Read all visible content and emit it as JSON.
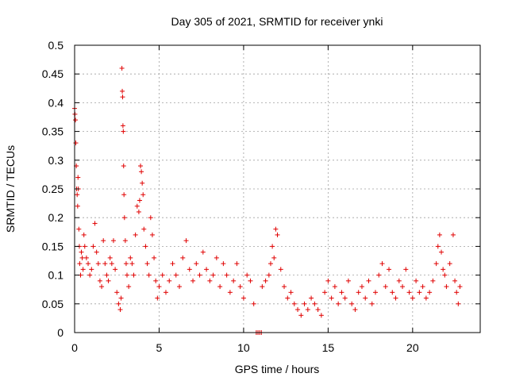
{
  "chart_data": {
    "type": "scatter",
    "title": "Day 305 of 2021, SRMTID for receiver ynki",
    "xlabel": "GPS time / hours",
    "ylabel": "SRMTID / TECUs",
    "xlim": [
      0,
      24
    ],
    "ylim": [
      0,
      0.5
    ],
    "grid": true,
    "marker": "+",
    "series_color": "#e00000",
    "x_ticks": [
      {
        "value": 0,
        "label": "0"
      },
      {
        "value": 5,
        "label": "5"
      },
      {
        "value": 10,
        "label": "10"
      },
      {
        "value": 15,
        "label": "15"
      },
      {
        "value": 20,
        "label": "20"
      }
    ],
    "y_ticks": [
      {
        "value": 0,
        "label": "0"
      },
      {
        "value": 0.05,
        "label": "0.05"
      },
      {
        "value": 0.1,
        "label": "0.1"
      },
      {
        "value": 0.15,
        "label": "0.15"
      },
      {
        "value": 0.2,
        "label": "0.2"
      },
      {
        "value": 0.25,
        "label": "0.25"
      },
      {
        "value": 0.3,
        "label": "0.3"
      },
      {
        "value": 0.35,
        "label": "0.35"
      },
      {
        "value": 0.4,
        "label": "0.4"
      },
      {
        "value": 0.45,
        "label": "0.45"
      },
      {
        "value": 0.5,
        "label": "0.5"
      }
    ],
    "series": [
      {
        "name": "SRMTID",
        "points": [
          [
            0.0,
            0.39
          ],
          [
            0.02,
            0.38
          ],
          [
            0.05,
            0.37
          ],
          [
            0.07,
            0.33
          ],
          [
            0.1,
            0.29
          ],
          [
            0.12,
            0.25
          ],
          [
            0.15,
            0.24
          ],
          [
            0.18,
            0.22
          ],
          [
            0.2,
            0.27
          ],
          [
            0.22,
            0.25
          ],
          [
            0.25,
            0.18
          ],
          [
            0.28,
            0.15
          ],
          [
            0.3,
            0.12
          ],
          [
            0.35,
            0.1
          ],
          [
            0.4,
            0.14
          ],
          [
            0.45,
            0.13
          ],
          [
            0.5,
            0.11
          ],
          [
            0.55,
            0.17
          ],
          [
            0.6,
            0.15
          ],
          [
            0.7,
            0.13
          ],
          [
            0.8,
            0.12
          ],
          [
            0.9,
            0.1
          ],
          [
            1.0,
            0.11
          ],
          [
            1.1,
            0.15
          ],
          [
            1.2,
            0.19
          ],
          [
            1.3,
            0.14
          ],
          [
            1.4,
            0.12
          ],
          [
            1.5,
            0.09
          ],
          [
            1.6,
            0.08
          ],
          [
            1.7,
            0.16
          ],
          [
            1.8,
            0.12
          ],
          [
            1.9,
            0.1
          ],
          [
            2.0,
            0.09
          ],
          [
            2.1,
            0.13
          ],
          [
            2.2,
            0.12
          ],
          [
            2.3,
            0.16
          ],
          [
            2.4,
            0.11
          ],
          [
            2.5,
            0.07
          ],
          [
            2.6,
            0.05
          ],
          [
            2.7,
            0.04
          ],
          [
            2.75,
            0.06
          ],
          [
            2.8,
            0.46
          ],
          [
            2.82,
            0.42
          ],
          [
            2.84,
            0.41
          ],
          [
            2.86,
            0.36
          ],
          [
            2.88,
            0.35
          ],
          [
            2.9,
            0.29
          ],
          [
            2.92,
            0.24
          ],
          [
            2.95,
            0.2
          ],
          [
            3.0,
            0.16
          ],
          [
            3.05,
            0.12
          ],
          [
            3.1,
            0.1
          ],
          [
            3.2,
            0.08
          ],
          [
            3.3,
            0.13
          ],
          [
            3.4,
            0.12
          ],
          [
            3.5,
            0.1
          ],
          [
            3.6,
            0.17
          ],
          [
            3.7,
            0.22
          ],
          [
            3.8,
            0.21
          ],
          [
            3.85,
            0.23
          ],
          [
            3.9,
            0.29
          ],
          [
            3.95,
            0.28
          ],
          [
            4.0,
            0.26
          ],
          [
            4.05,
            0.24
          ],
          [
            4.1,
            0.18
          ],
          [
            4.2,
            0.15
          ],
          [
            4.3,
            0.12
          ],
          [
            4.4,
            0.1
          ],
          [
            4.5,
            0.2
          ],
          [
            4.6,
            0.17
          ],
          [
            4.7,
            0.13
          ],
          [
            4.8,
            0.09
          ],
          [
            4.9,
            0.06
          ],
          [
            5.0,
            0.08
          ],
          [
            5.2,
            0.1
          ],
          [
            5.4,
            0.07
          ],
          [
            5.6,
            0.09
          ],
          [
            5.8,
            0.12
          ],
          [
            6.0,
            0.1
          ],
          [
            6.2,
            0.08
          ],
          [
            6.4,
            0.13
          ],
          [
            6.6,
            0.16
          ],
          [
            6.8,
            0.11
          ],
          [
            7.0,
            0.09
          ],
          [
            7.2,
            0.12
          ],
          [
            7.4,
            0.1
          ],
          [
            7.6,
            0.14
          ],
          [
            7.8,
            0.11
          ],
          [
            8.0,
            0.09
          ],
          [
            8.2,
            0.1
          ],
          [
            8.4,
            0.13
          ],
          [
            8.6,
            0.08
          ],
          [
            8.8,
            0.12
          ],
          [
            9.0,
            0.1
          ],
          [
            9.2,
            0.07
          ],
          [
            9.4,
            0.09
          ],
          [
            9.6,
            0.12
          ],
          [
            9.8,
            0.08
          ],
          [
            10.0,
            0.06
          ],
          [
            10.2,
            0.1
          ],
          [
            10.4,
            0.09
          ],
          [
            10.6,
            0.05
          ],
          [
            10.75,
            0.0
          ],
          [
            10.85,
            0.0
          ],
          [
            10.95,
            0.0
          ],
          [
            11.05,
            0.0
          ],
          [
            11.1,
            0.08
          ],
          [
            11.3,
            0.09
          ],
          [
            11.5,
            0.1
          ],
          [
            11.6,
            0.12
          ],
          [
            11.7,
            0.15
          ],
          [
            11.8,
            0.13
          ],
          [
            11.9,
            0.18
          ],
          [
            12.0,
            0.17
          ],
          [
            12.2,
            0.11
          ],
          [
            12.4,
            0.08
          ],
          [
            12.6,
            0.06
          ],
          [
            12.8,
            0.07
          ],
          [
            13.0,
            0.05
          ],
          [
            13.2,
            0.04
          ],
          [
            13.4,
            0.03
          ],
          [
            13.6,
            0.05
          ],
          [
            13.8,
            0.04
          ],
          [
            14.0,
            0.06
          ],
          [
            14.2,
            0.05
          ],
          [
            14.4,
            0.04
          ],
          [
            14.6,
            0.03
          ],
          [
            14.8,
            0.07
          ],
          [
            15.0,
            0.09
          ],
          [
            15.2,
            0.06
          ],
          [
            15.4,
            0.08
          ],
          [
            15.6,
            0.05
          ],
          [
            15.8,
            0.07
          ],
          [
            16.0,
            0.06
          ],
          [
            16.2,
            0.09
          ],
          [
            16.4,
            0.05
          ],
          [
            16.6,
            0.04
          ],
          [
            16.8,
            0.07
          ],
          [
            17.0,
            0.08
          ],
          [
            17.2,
            0.06
          ],
          [
            17.4,
            0.09
          ],
          [
            17.6,
            0.05
          ],
          [
            17.8,
            0.07
          ],
          [
            18.0,
            0.1
          ],
          [
            18.2,
            0.12
          ],
          [
            18.4,
            0.08
          ],
          [
            18.6,
            0.11
          ],
          [
            18.8,
            0.07
          ],
          [
            19.0,
            0.06
          ],
          [
            19.2,
            0.09
          ],
          [
            19.4,
            0.08
          ],
          [
            19.6,
            0.11
          ],
          [
            19.8,
            0.07
          ],
          [
            20.0,
            0.06
          ],
          [
            20.2,
            0.09
          ],
          [
            20.4,
            0.07
          ],
          [
            20.6,
            0.08
          ],
          [
            20.8,
            0.06
          ],
          [
            21.0,
            0.07
          ],
          [
            21.2,
            0.09
          ],
          [
            21.4,
            0.12
          ],
          [
            21.5,
            0.15
          ],
          [
            21.6,
            0.17
          ],
          [
            21.7,
            0.14
          ],
          [
            21.8,
            0.11
          ],
          [
            21.9,
            0.1
          ],
          [
            22.0,
            0.08
          ],
          [
            22.2,
            0.12
          ],
          [
            22.4,
            0.17
          ],
          [
            22.5,
            0.09
          ],
          [
            22.6,
            0.07
          ],
          [
            22.7,
            0.05
          ],
          [
            22.8,
            0.08
          ]
        ]
      }
    ]
  }
}
